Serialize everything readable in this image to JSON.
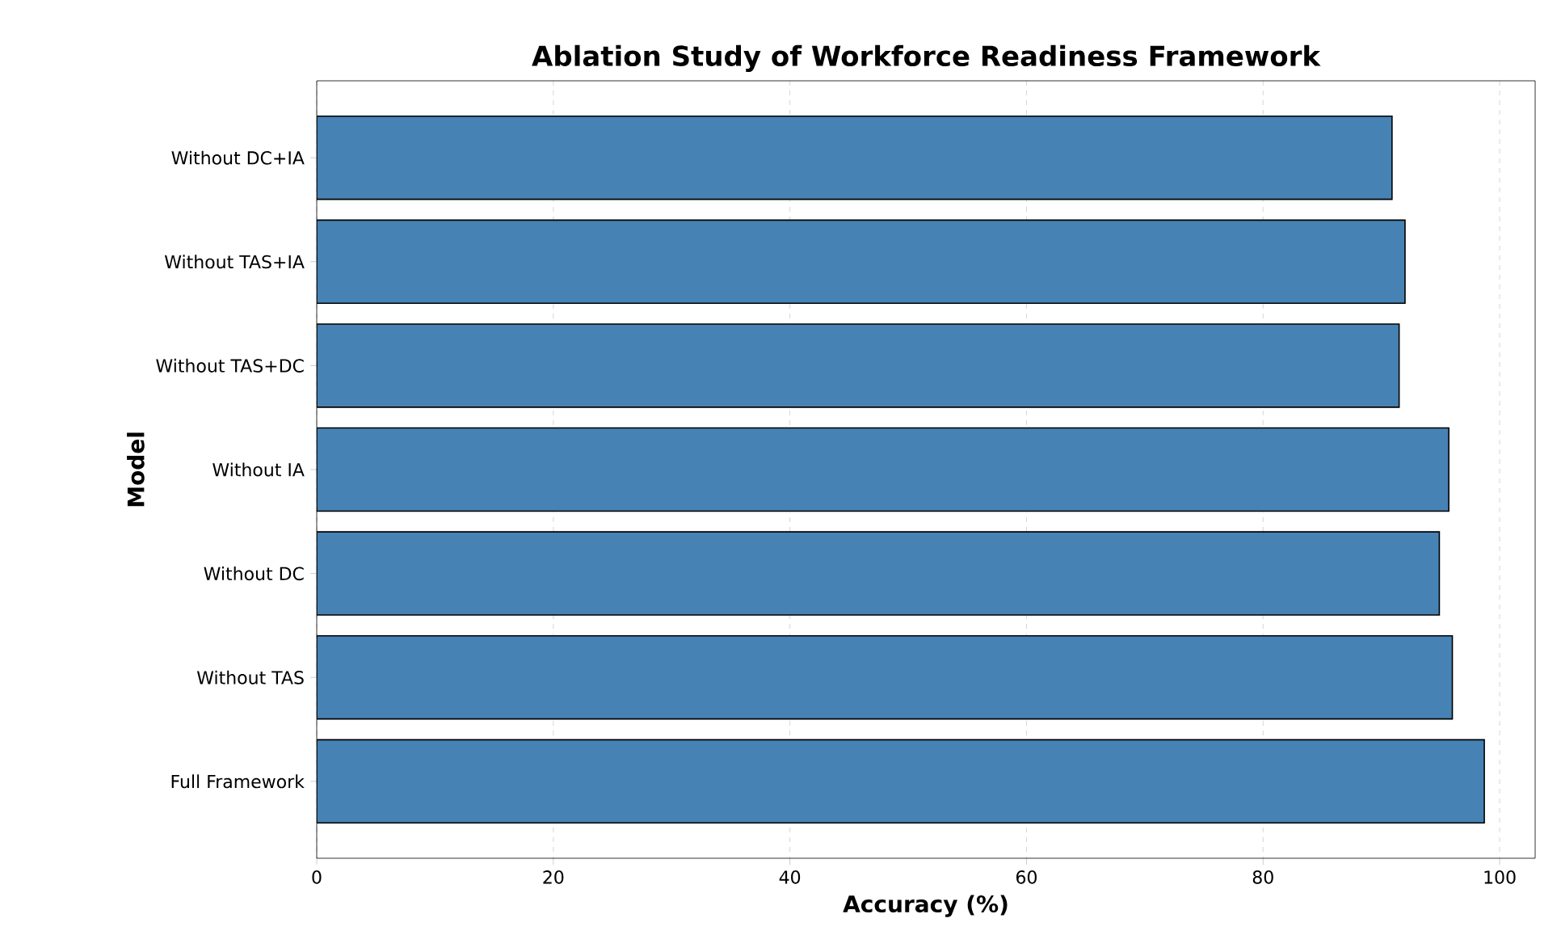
{
  "chart_data": {
    "type": "bar",
    "orientation": "horizontal",
    "title": "Ablation Study of Workforce Readiness Framework",
    "xlabel": "Accuracy (%)",
    "ylabel": "Model",
    "categories": [
      "Without DC+IA",
      "Without TAS+IA",
      "Without TAS+DC",
      "Without IA",
      "Without DC",
      "Without TAS",
      "Full Framework"
    ],
    "values": [
      90.9,
      92.0,
      91.5,
      95.7,
      94.9,
      96.0,
      98.7
    ],
    "color": "#4682b4",
    "xlim": [
      0,
      103
    ],
    "xticks": [
      0,
      20,
      40,
      60,
      80,
      100
    ],
    "grid": "x"
  }
}
